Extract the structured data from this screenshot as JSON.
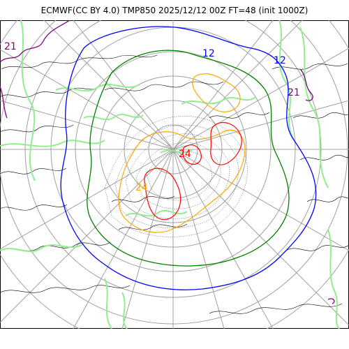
{
  "title": "ECMWF(CC BY 4.0) TMP850 2025/12/12 00Z FT=48 (init 1000Z)",
  "contour_labels": {
    "c12_top": "12",
    "c12_right": "12",
    "c21_topleft": "21",
    "c21_right": "21",
    "c24_center": "24",
    "c24_left": "24"
  },
  "colors": {
    "contour_blue": "#0000ff",
    "contour_green": "#008000",
    "contour_lightgreen": "#90ee90",
    "contour_orange": "#ffa500",
    "contour_red": "#ff0000",
    "contour_purple": "#800080",
    "coastline": "#000000",
    "graticule": "#a0a0a0"
  }
}
